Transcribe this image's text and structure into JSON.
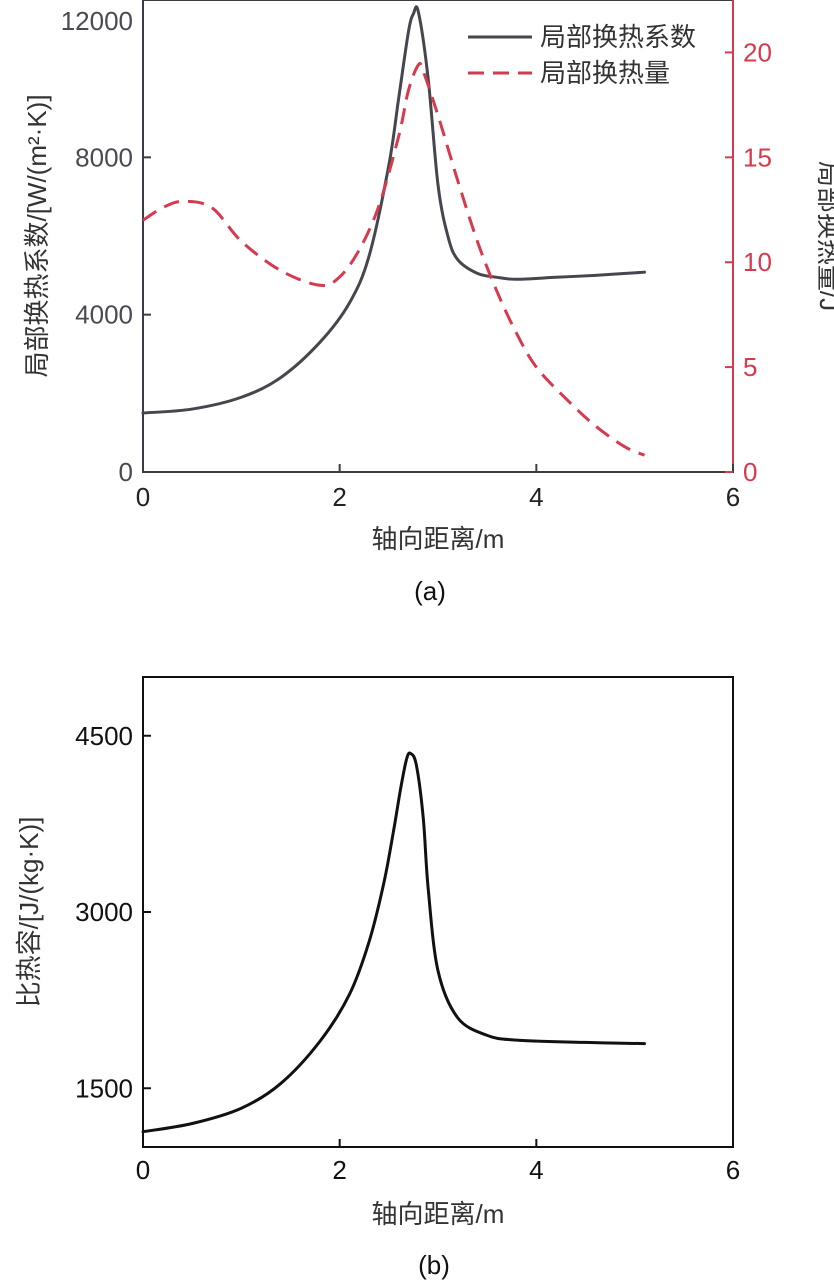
{
  "chart_data": [
    {
      "id": "a",
      "type": "line",
      "caption": "(a)",
      "xlabel": "轴向距离/m",
      "ylabel_left": "局部换热系数/[W/(m²·K)]",
      "ylabel_right": "局部换热量/J",
      "xlim": [
        0,
        6
      ],
      "ylim_left": [
        0,
        12000
      ],
      "ylim_right": [
        0,
        22.5
      ],
      "xticks": [
        0,
        2,
        4,
        6
      ],
      "yticks_left": [
        0,
        4000,
        8000,
        12000
      ],
      "yticks_right": [
        0,
        5,
        10,
        15,
        20
      ],
      "grid": false,
      "legend_position": "top-right",
      "colors": {
        "left_axis": "#4a4a52",
        "right_axis": "#d63a4e"
      },
      "series": [
        {
          "name": "局部换热系数",
          "axis": "left",
          "style": "solid",
          "color": "#46464e",
          "x": [
            0,
            0.5,
            1.0,
            1.4,
            1.8,
            2.1,
            2.3,
            2.5,
            2.6,
            2.7,
            2.75,
            2.8,
            2.9,
            3.0,
            3.1,
            3.2,
            3.4,
            3.6,
            3.8,
            4.2,
            4.6,
            5.1
          ],
          "y": [
            1500,
            1600,
            1900,
            2400,
            3300,
            4300,
            5500,
            7800,
            9500,
            11200,
            11650,
            11700,
            10000,
            7300,
            6000,
            5400,
            5050,
            4950,
            4900,
            4950,
            5000,
            5080
          ]
        },
        {
          "name": "局部换热量",
          "axis": "right",
          "style": "dashed",
          "color": "#d63a4e",
          "x": [
            0,
            0.2,
            0.4,
            0.7,
            1.0,
            1.4,
            1.8,
            2.0,
            2.2,
            2.4,
            2.6,
            2.7,
            2.8,
            2.85,
            3.0,
            3.2,
            3.4,
            3.6,
            3.8,
            4.0,
            4.3,
            4.6,
            4.9,
            5.1
          ],
          "y": [
            12.0,
            12.6,
            12.9,
            12.6,
            11.0,
            9.6,
            8.9,
            9.3,
            10.6,
            12.7,
            16.0,
            18.2,
            19.4,
            19.1,
            17.0,
            13.9,
            11.0,
            8.6,
            6.6,
            5.0,
            3.5,
            2.2,
            1.2,
            0.8
          ]
        }
      ]
    },
    {
      "id": "b",
      "type": "line",
      "caption": "(b)",
      "xlabel": "轴向距离/m",
      "ylabel": "比热容/[J/(kg·K)]",
      "xlim": [
        0,
        6
      ],
      "ylim": [
        1000,
        5000
      ],
      "xticks": [
        0,
        2,
        4,
        6
      ],
      "yticks": [
        1500,
        3000,
        4500
      ],
      "grid": false,
      "series": [
        {
          "name": "比热容",
          "style": "solid",
          "color": "#111111",
          "x": [
            0,
            0.5,
            1.0,
            1.4,
            1.8,
            2.1,
            2.3,
            2.45,
            2.55,
            2.62,
            2.68,
            2.72,
            2.78,
            2.85,
            2.9,
            3.0,
            3.2,
            3.5,
            3.8,
            4.5,
            5.1
          ],
          "y": [
            1130,
            1200,
            1330,
            1540,
            1900,
            2300,
            2750,
            3250,
            3700,
            4050,
            4300,
            4350,
            4250,
            3800,
            3200,
            2500,
            2100,
            1950,
            1910,
            1890,
            1880
          ]
        }
      ]
    }
  ]
}
